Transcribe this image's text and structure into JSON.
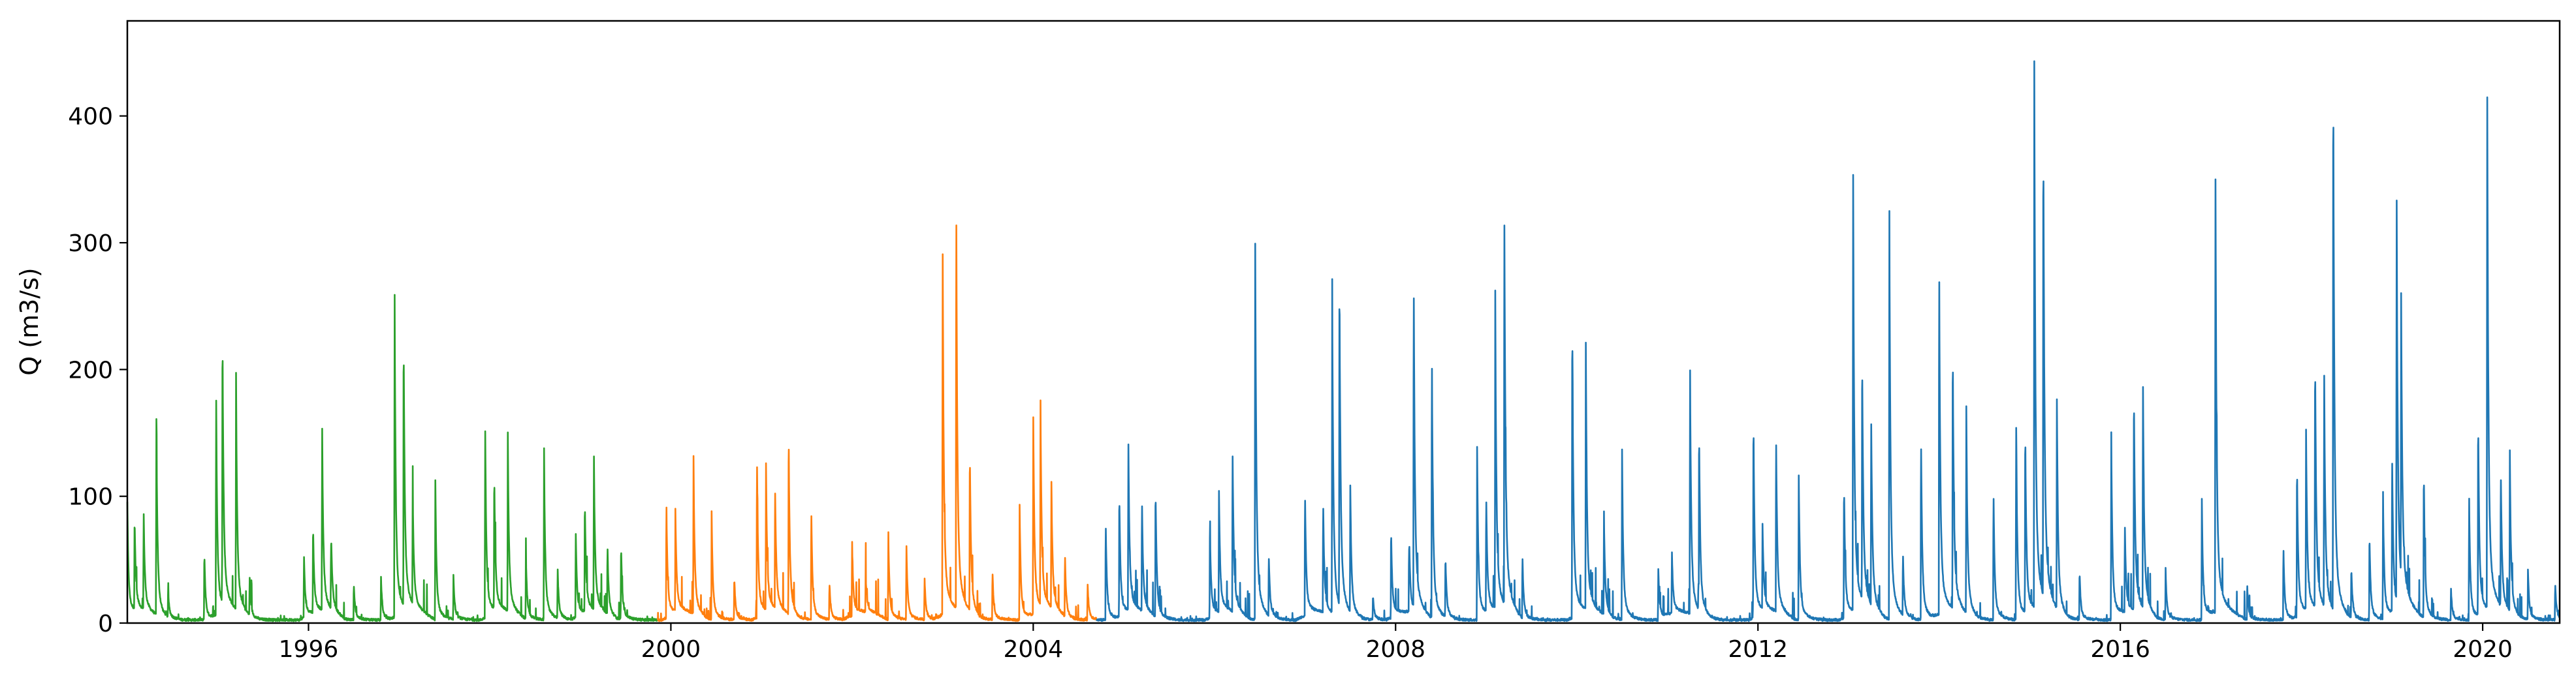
{
  "chart_data": {
    "type": "line",
    "title": "",
    "xlabel": "",
    "ylabel": "Q (m3/s)",
    "xlim": [
      1994.0,
      2020.85
    ],
    "ylim": [
      0,
      475
    ],
    "x_ticks": [
      1996,
      2000,
      2004,
      2008,
      2012,
      2016,
      2020
    ],
    "x_tick_labels": [
      "1996",
      "2000",
      "2004",
      "2008",
      "2012",
      "2016",
      "2020"
    ],
    "y_ticks": [
      0,
      100,
      200,
      300,
      400
    ],
    "y_tick_labels": [
      "0",
      "100",
      "200",
      "300",
      "400"
    ],
    "grid": false,
    "legend": "none",
    "series": [
      {
        "color": "#2ca02c",
        "range": [
          1994.0,
          1999.85
        ],
        "peaks": [
          [
            1994.0,
            90
          ],
          [
            1994.08,
            75
          ],
          [
            1994.18,
            80
          ],
          [
            1994.32,
            160
          ],
          [
            1994.45,
            20
          ],
          [
            1994.85,
            55
          ],
          [
            1994.98,
            180
          ],
          [
            1995.05,
            222
          ],
          [
            1995.2,
            185
          ],
          [
            1995.35,
            30
          ],
          [
            1995.95,
            50
          ],
          [
            1996.05,
            70
          ],
          [
            1996.15,
            150
          ],
          [
            1996.25,
            60
          ],
          [
            1996.5,
            30
          ],
          [
            1996.8,
            35
          ],
          [
            1996.95,
            268
          ],
          [
            1997.05,
            220
          ],
          [
            1997.15,
            90
          ],
          [
            1997.4,
            110
          ],
          [
            1997.6,
            35
          ],
          [
            1997.95,
            155
          ],
          [
            1998.05,
            110
          ],
          [
            1998.2,
            140
          ],
          [
            1998.4,
            50
          ],
          [
            1998.6,
            135
          ],
          [
            1998.75,
            40
          ],
          [
            1998.95,
            70
          ],
          [
            1999.05,
            90
          ],
          [
            1999.15,
            127
          ],
          [
            1999.3,
            55
          ],
          [
            1999.45,
            60
          ]
        ]
      },
      {
        "color": "#ff7f0e",
        "range": [
          1999.85,
          2004.7
        ],
        "peaks": [
          [
            1999.95,
            95
          ],
          [
            2000.05,
            80
          ],
          [
            2000.25,
            123
          ],
          [
            2000.45,
            85
          ],
          [
            2000.7,
            35
          ],
          [
            2000.95,
            131
          ],
          [
            2001.05,
            115
          ],
          [
            2001.15,
            100
          ],
          [
            2001.3,
            143
          ],
          [
            2001.55,
            90
          ],
          [
            2001.75,
            30
          ],
          [
            2002.0,
            60
          ],
          [
            2002.15,
            30
          ],
          [
            2002.4,
            72
          ],
          [
            2002.6,
            60
          ],
          [
            2002.8,
            35
          ],
          [
            2003.0,
            300
          ],
          [
            2003.15,
            327
          ],
          [
            2003.3,
            130
          ],
          [
            2003.55,
            40
          ],
          [
            2003.85,
            90
          ],
          [
            2004.0,
            163
          ],
          [
            2004.08,
            163
          ],
          [
            2004.2,
            105
          ],
          [
            2004.35,
            50
          ],
          [
            2004.6,
            30
          ]
        ]
      },
      {
        "color": "#1f77b4",
        "range": [
          2004.7,
          2020.85
        ],
        "peaks": [
          [
            2004.8,
            80
          ],
          [
            2004.95,
            100
          ],
          [
            2005.05,
            137
          ],
          [
            2005.2,
            90
          ],
          [
            2005.35,
            105
          ],
          [
            2005.95,
            75
          ],
          [
            2006.05,
            100
          ],
          [
            2006.2,
            135
          ],
          [
            2006.45,
            312
          ],
          [
            2006.6,
            50
          ],
          [
            2007.0,
            100
          ],
          [
            2007.2,
            90
          ],
          [
            2007.3,
            262
          ],
          [
            2007.38,
            270
          ],
          [
            2007.5,
            100
          ],
          [
            2007.75,
            20
          ],
          [
            2007.95,
            72
          ],
          [
            2008.15,
            60
          ],
          [
            2008.2,
            268
          ],
          [
            2008.4,
            218
          ],
          [
            2008.55,
            50
          ],
          [
            2008.9,
            137
          ],
          [
            2009.0,
            95
          ],
          [
            2009.1,
            250
          ],
          [
            2009.2,
            330
          ],
          [
            2009.4,
            50
          ],
          [
            2009.95,
            245
          ],
          [
            2010.1,
            210
          ],
          [
            2010.3,
            80
          ],
          [
            2010.5,
            135
          ],
          [
            2010.9,
            40
          ],
          [
            2011.05,
            50
          ],
          [
            2011.25,
            202
          ],
          [
            2011.35,
            148
          ],
          [
            2011.95,
            165
          ],
          [
            2012.05,
            70
          ],
          [
            2012.2,
            145
          ],
          [
            2012.45,
            120
          ],
          [
            2012.95,
            110
          ],
          [
            2013.05,
            360
          ],
          [
            2013.15,
            200
          ],
          [
            2013.25,
            150
          ],
          [
            2013.45,
            338
          ],
          [
            2013.6,
            50
          ],
          [
            2013.8,
            148
          ],
          [
            2014.0,
            290
          ],
          [
            2014.15,
            215
          ],
          [
            2014.3,
            162
          ],
          [
            2014.6,
            105
          ],
          [
            2014.85,
            160
          ],
          [
            2014.95,
            150
          ],
          [
            2015.05,
            452
          ],
          [
            2015.15,
            380
          ],
          [
            2015.3,
            165
          ],
          [
            2015.55,
            40
          ],
          [
            2015.9,
            148
          ],
          [
            2016.05,
            70
          ],
          [
            2016.15,
            180
          ],
          [
            2016.25,
            182
          ],
          [
            2016.5,
            40
          ],
          [
            2016.9,
            95
          ],
          [
            2017.05,
            360
          ],
          [
            2017.4,
            30
          ],
          [
            2017.8,
            60
          ],
          [
            2017.95,
            125
          ],
          [
            2018.05,
            148
          ],
          [
            2018.15,
            205
          ],
          [
            2018.25,
            190
          ],
          [
            2018.35,
            442
          ],
          [
            2018.55,
            40
          ],
          [
            2018.75,
            70
          ],
          [
            2018.9,
            100
          ],
          [
            2019.0,
            130
          ],
          [
            2019.05,
            330
          ],
          [
            2019.1,
            222
          ],
          [
            2019.35,
            120
          ],
          [
            2019.65,
            25
          ],
          [
            2019.85,
            100
          ],
          [
            2019.95,
            160
          ],
          [
            2020.05,
            422
          ],
          [
            2020.2,
            110
          ],
          [
            2020.3,
            122
          ],
          [
            2020.5,
            40
          ],
          [
            2020.8,
            30
          ]
        ]
      }
    ]
  }
}
